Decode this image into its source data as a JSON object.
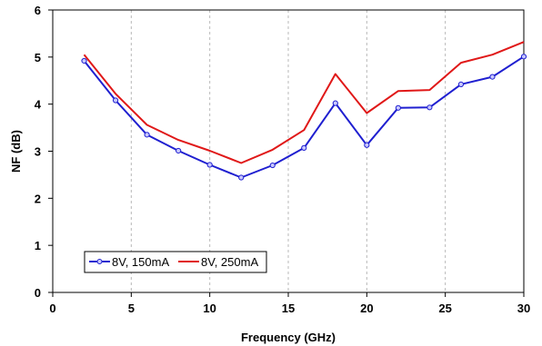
{
  "chart_data": {
    "type": "line",
    "title": "",
    "xlabel": "Frequency (GHz)",
    "ylabel": "NF (dB)",
    "xlim": [
      0,
      30
    ],
    "ylim": [
      0,
      6
    ],
    "xticks": [
      0,
      5,
      10,
      15,
      20,
      25,
      30
    ],
    "yticks": [
      0,
      1,
      2,
      3,
      4,
      5,
      6
    ],
    "grid": "vertical dashed",
    "legend_position": "bottom-left",
    "x": [
      2,
      4,
      6,
      8,
      10,
      12,
      14,
      16,
      18,
      20,
      22,
      24,
      26,
      28,
      30
    ],
    "series": [
      {
        "name": "8V, 150mA",
        "color": "#1f1fd0",
        "marker": "circle",
        "values": [
          4.92,
          4.08,
          3.35,
          3.01,
          2.71,
          2.44,
          2.7,
          3.07,
          4.02,
          3.13,
          3.92,
          3.93,
          4.42,
          4.58,
          5.01
        ]
      },
      {
        "name": "8V, 250mA",
        "color": "#e01818",
        "marker": "none",
        "values": [
          5.05,
          4.22,
          3.56,
          3.24,
          3.01,
          2.75,
          3.03,
          3.45,
          4.64,
          3.81,
          4.28,
          4.3,
          4.88,
          5.05,
          5.32
        ]
      }
    ]
  }
}
